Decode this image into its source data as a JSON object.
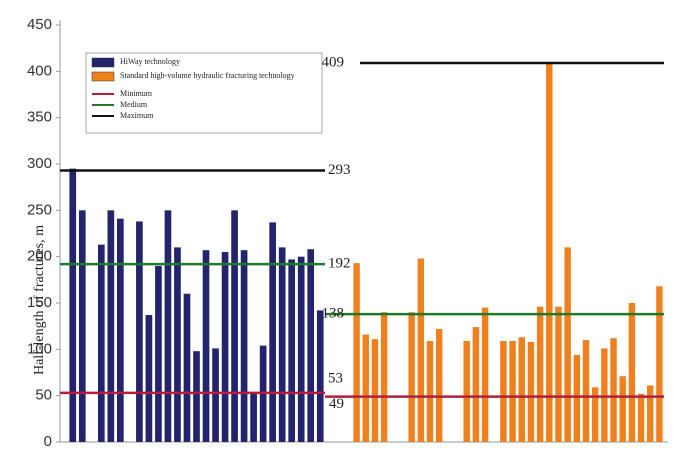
{
  "chart_data": {
    "type": "bar",
    "y_label": "Half-length of fractures, m",
    "ylim": [
      0,
      450
    ],
    "yticks": [
      0,
      50,
      100,
      150,
      200,
      250,
      300,
      350,
      400,
      450
    ],
    "series": [
      {
        "name": "HiWay technology",
        "color": "#23236e",
        "values": [
          295,
          250,
          null,
          213,
          250,
          241,
          null,
          238,
          137,
          190,
          250,
          210,
          160,
          98,
          207,
          101,
          205,
          250,
          207,
          52,
          104,
          237,
          210,
          197,
          200,
          208,
          142
        ]
      },
      {
        "name": "Standard high-volume hydraulic fracturing technology",
        "color": "#f07f1e",
        "values": [
          193,
          116,
          111,
          140,
          null,
          null,
          140,
          198,
          109,
          122,
          null,
          null,
          109,
          124,
          145,
          null,
          109,
          109,
          113,
          108,
          146,
          409,
          146,
          210,
          94,
          110,
          59,
          101,
          112,
          71,
          150,
          52,
          61,
          168
        ]
      }
    ],
    "reference_lines": [
      {
        "name": "Minimum",
        "color": "#b0203c",
        "values": [
          53,
          49
        ]
      },
      {
        "name": "Medium",
        "color": "#1f7a2a",
        "values": [
          192,
          138
        ]
      },
      {
        "name": "Maximum",
        "color": "#111111",
        "values": [
          293,
          409
        ]
      }
    ]
  }
}
